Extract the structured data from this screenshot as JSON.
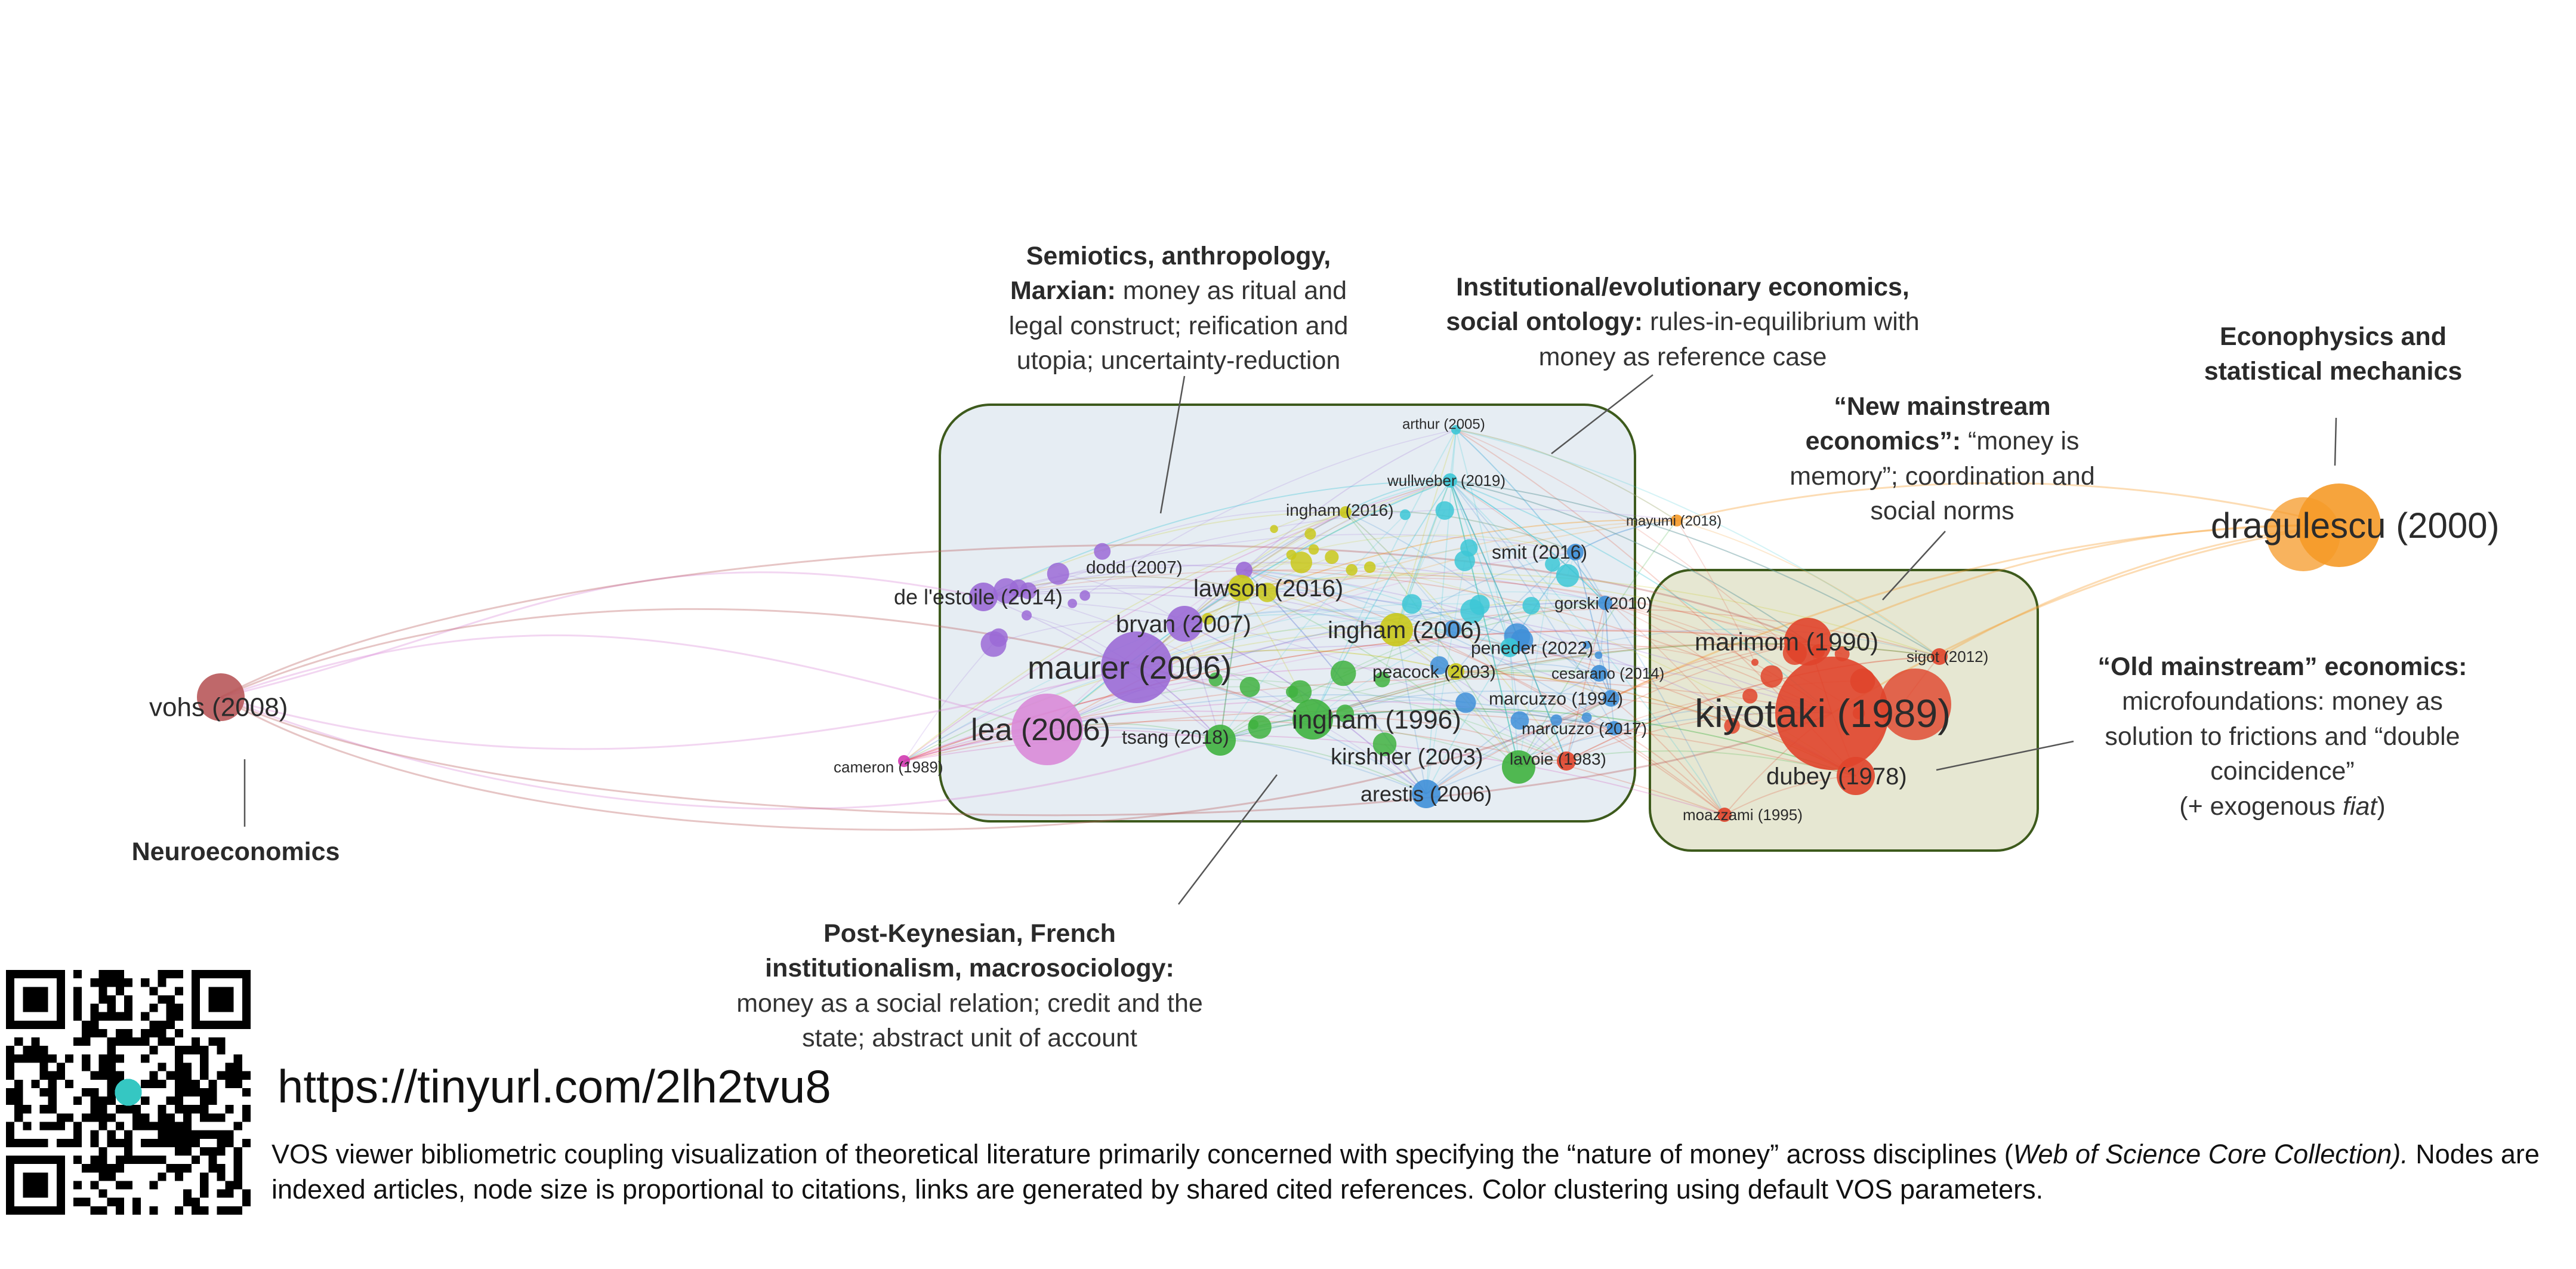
{
  "annotations": {
    "semiotics": {
      "title": "Semiotics, anthropology, Marxian:",
      "body": "money as ritual and legal construct; reification and utopia; uncertainty-reduction"
    },
    "institutional": {
      "title": "Institutional/evolutionary economics, social ontology:",
      "body": "rules-in-equilibrium with money as reference case"
    },
    "new_mainstream": {
      "title": "“New mainstream economics”:",
      "body": "“money is memory”; coordination and social norms"
    },
    "econophysics": {
      "title": "Econophysics and statistical mechanics",
      "body": ""
    },
    "old_mainstream": {
      "title": "“Old mainstream” economics:",
      "body": "microfoundations: money as solution to frictions and “double coincidence”",
      "tail_prefix": "(+ exogenous ",
      "tail_italic": "fiat",
      "tail_suffix": ")"
    },
    "neuroeconomics": {
      "title": "Neuroeconomics",
      "body": ""
    },
    "post_keynesian": {
      "title": "Post-Keynesian, French institutionalism, macrosociology:",
      "body": "money as a social relation; credit and the state;  abstract unit of account"
    }
  },
  "url": "https://tinyurl.com/2lh2tvu8",
  "caption": {
    "part1": "VOS viewer bibliometric coupling visualization of theoretical literature primarily concerned with specifying the “nature of money” across disciplines (",
    "italic": "Web of Science Core Collection).",
    "part2": " Nodes are indexed articles, node size is proportional to citations, links are generated by shared cited references. Color clustering using default VOS parameters."
  },
  "colors": {
    "purple": "#9b6ad6",
    "pink": "#d98ad8",
    "green": "#3fb13f",
    "yellow": "#c9c81a",
    "cyan": "#3cc7d6",
    "blue": "#3f8fd8",
    "red": "#e0442b",
    "orange": "#f59a28",
    "brown": "#b8585a",
    "magenta": "#d03ab0",
    "box_left_fill": "#e6edf3",
    "box_right_fill": "#e6e7d2",
    "box_stroke": "#3d5a1c"
  },
  "nodes": [
    {
      "label": "vohs (2008)",
      "color": "brown"
    },
    {
      "label": "cameron (1989)",
      "color": "magenta"
    },
    {
      "label": "arthur (2005)",
      "color": "cyan"
    },
    {
      "label": "wullweber (2019)",
      "color": "cyan"
    },
    {
      "label": "ingham (2016)",
      "color": "yellow"
    },
    {
      "label": "dodd (2007)",
      "color": "purple"
    },
    {
      "label": "de l'estoile (2014)",
      "color": "purple"
    },
    {
      "label": "lawson (2016)",
      "color": "yellow"
    },
    {
      "label": "bryan (2007)",
      "color": "purple"
    },
    {
      "label": "ingham (2006)",
      "color": "yellow"
    },
    {
      "label": "maurer (2006)",
      "color": "purple"
    },
    {
      "label": "lea (2006)",
      "color": "pink"
    },
    {
      "label": "tsang (2018)",
      "color": "green"
    },
    {
      "label": "ingham (1996)",
      "color": "green"
    },
    {
      "label": "kirshner (2003)",
      "color": "green"
    },
    {
      "label": "arestis (2006)",
      "color": "blue"
    },
    {
      "label": "smit (2016)",
      "color": "blue"
    },
    {
      "label": "peacock (2003)",
      "color": "yellow"
    },
    {
      "label": "marcuzzo (1994)",
      "color": "blue"
    },
    {
      "label": "marcuzzo (2017)",
      "color": "blue"
    },
    {
      "label": "lavoie (1983)",
      "color": "red"
    },
    {
      "label": "mayumi (2018)",
      "color": "orange"
    },
    {
      "label": "gorski (2010)",
      "color": "blue"
    },
    {
      "label": "peneder (2022)",
      "color": "cyan"
    },
    {
      "label": "cesarano (2014)",
      "color": "blue"
    },
    {
      "label": "marimom (1990)",
      "color": "red"
    },
    {
      "label": "sigot (2012)",
      "color": "red"
    },
    {
      "label": "kiyotaki (1989)",
      "color": "red"
    },
    {
      "label": "dubey (1978)",
      "color": "red"
    },
    {
      "label": "moazzami (1995)",
      "color": "red"
    },
    {
      "label": "dragulescu (2000)",
      "color": "orange"
    }
  ]
}
